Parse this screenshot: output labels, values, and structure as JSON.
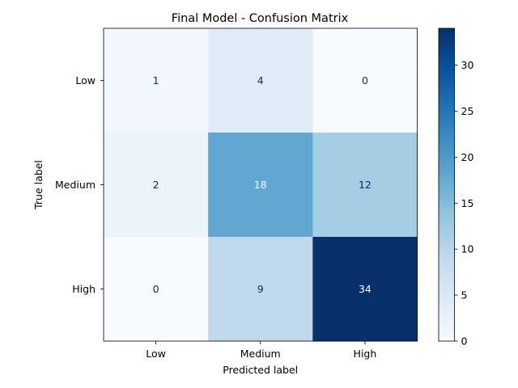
{
  "chart_data": {
    "type": "heatmap",
    "title": "Final Model - Confusion Matrix",
    "xlabel": "Predicted label",
    "ylabel": "True label",
    "x_categories": [
      "Low",
      "Medium",
      "High"
    ],
    "y_categories": [
      "Low",
      "Medium",
      "High"
    ],
    "values": [
      [
        1,
        4,
        0
      ],
      [
        2,
        18,
        12
      ],
      [
        0,
        9,
        34
      ]
    ],
    "colormap": "Blues",
    "colorbar": {
      "range": [
        0,
        34
      ],
      "ticks": [
        "0",
        "5",
        "10",
        "15",
        "20",
        "25",
        "30"
      ]
    },
    "grid": false
  }
}
